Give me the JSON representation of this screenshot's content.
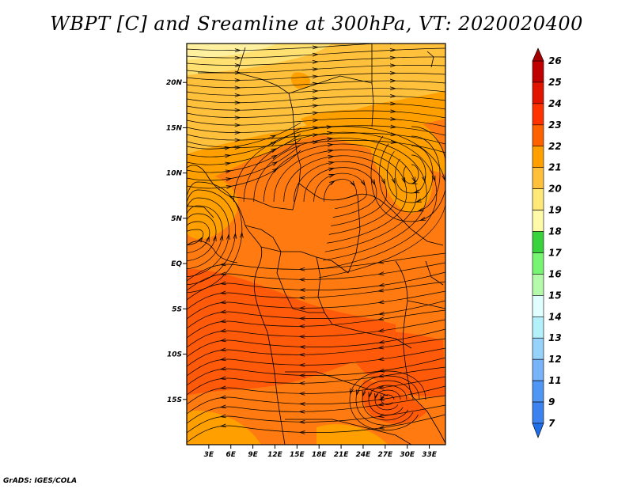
{
  "title": "WBPT [C] and Sreamline at 300hPa, VT: 2020020400",
  "footer": "GrADS: IGES/COLA",
  "map": {
    "lat_ticks": [
      {
        "lat": 20,
        "label": "20N"
      },
      {
        "lat": 15,
        "label": "15N"
      },
      {
        "lat": 10,
        "label": "10N"
      },
      {
        "lat": 5,
        "label": "5N"
      },
      {
        "lat": 0,
        "label": "EQ"
      },
      {
        "lat": -5,
        "label": "5S"
      },
      {
        "lat": -10,
        "label": "10S"
      },
      {
        "lat": -15,
        "label": "15S"
      }
    ],
    "lon_ticks": [
      {
        "lon": 3,
        "label": "3E"
      },
      {
        "lon": 6,
        "label": "6E"
      },
      {
        "lon": 9,
        "label": "9E"
      },
      {
        "lon": 12,
        "label": "12E"
      },
      {
        "lon": 15,
        "label": "15E"
      },
      {
        "lon": 18,
        "label": "18E"
      },
      {
        "lon": 21,
        "label": "21E"
      },
      {
        "lon": 24,
        "label": "24E"
      },
      {
        "lon": 27,
        "label": "27E"
      },
      {
        "lon": 30,
        "label": "30E"
      },
      {
        "lon": 33,
        "label": "33E"
      }
    ]
  },
  "colorbar": {
    "levels": [
      "7",
      "9",
      "11",
      "12",
      "13",
      "14",
      "15",
      "16",
      "17",
      "18",
      "19",
      "20",
      "21",
      "22",
      "23",
      "24",
      "25",
      "26"
    ],
    "colors": [
      "#1e6ee6",
      "#3c82f0",
      "#5096f5",
      "#78b4fa",
      "#96d2fa",
      "#b4f0fa",
      "#e1ffff",
      "#b4faaa",
      "#78f573",
      "#37d23c",
      "#fffaaa",
      "#ffe878",
      "#ffc03c",
      "#ffa000",
      "#ff6000",
      "#ff3200",
      "#e11400",
      "#c00000",
      "#a50000"
    ]
  },
  "colors": {
    "wbpt_19": "#fff0a0",
    "wbpt_20": "#ffe070",
    "wbpt_21": "#ffc03c",
    "wbpt_22": "#ffa000",
    "wbpt_23": "#ff7a10",
    "wbpt_24": "#ff5a0a",
    "coast": "#000000",
    "streamline": "#000000"
  }
}
